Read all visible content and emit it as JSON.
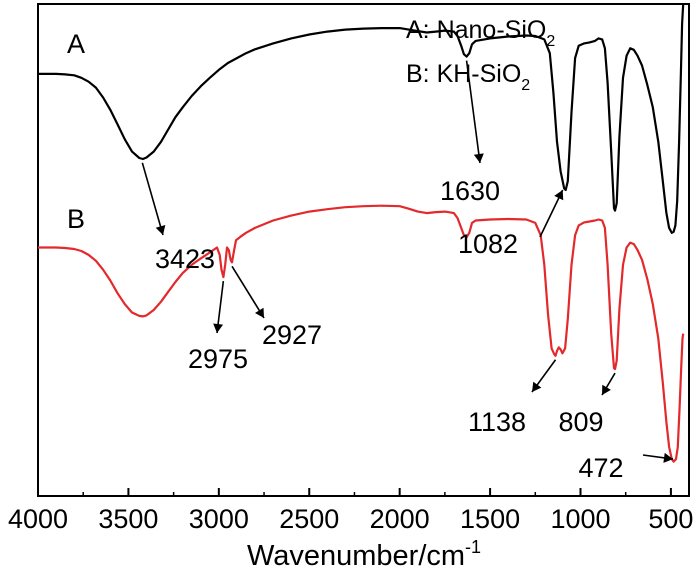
{
  "chart_data": {
    "type": "line",
    "title": "",
    "xlabel": "Wavenumber/cm",
    "xlabel_superscript": "-1",
    "ylabel": "",
    "xlim": [
      4000,
      400
    ],
    "x_reversed": true,
    "ylim": [
      0,
      1
    ],
    "grid": false,
    "x_ticks": [
      4000,
      3500,
      3000,
      2500,
      2000,
      1500,
      1000,
      500
    ],
    "x_tick_labels": [
      "4000",
      "3500",
      "3000",
      "2500",
      "2000",
      "1500",
      "1000",
      "500"
    ],
    "legend": {
      "placement": "top-right",
      "entries": [
        {
          "prefix": "A: Nano-SiO",
          "subscript": "2"
        },
        {
          "prefix": "B: KH-SiO",
          "subscript": "2"
        }
      ]
    },
    "series": [
      {
        "name": "A",
        "color": "#000000",
        "points": [
          [
            4000,
            0.858
          ],
          [
            3900,
            0.858
          ],
          [
            3850,
            0.857
          ],
          [
            3800,
            0.855
          ],
          [
            3760,
            0.85
          ],
          [
            3720,
            0.842
          ],
          [
            3680,
            0.83
          ],
          [
            3640,
            0.81
          ],
          [
            3600,
            0.785
          ],
          [
            3560,
            0.755
          ],
          [
            3520,
            0.725
          ],
          [
            3480,
            0.7
          ],
          [
            3440,
            0.687
          ],
          [
            3420,
            0.685
          ],
          [
            3400,
            0.688
          ],
          [
            3360,
            0.7
          ],
          [
            3320,
            0.72
          ],
          [
            3280,
            0.745
          ],
          [
            3240,
            0.77
          ],
          [
            3200,
            0.79
          ],
          [
            3150,
            0.813
          ],
          [
            3100,
            0.833
          ],
          [
            3050,
            0.85
          ],
          [
            3000,
            0.866
          ],
          [
            2950,
            0.88
          ],
          [
            2900,
            0.89
          ],
          [
            2850,
            0.9
          ],
          [
            2800,
            0.908
          ],
          [
            2700,
            0.92
          ],
          [
            2600,
            0.93
          ],
          [
            2500,
            0.938
          ],
          [
            2400,
            0.944
          ],
          [
            2300,
            0.948
          ],
          [
            2200,
            0.95
          ],
          [
            2100,
            0.951
          ],
          [
            2000,
            0.951
          ],
          [
            1950,
            0.948
          ],
          [
            1900,
            0.945
          ],
          [
            1850,
            0.942
          ],
          [
            1800,
            0.944
          ],
          [
            1750,
            0.946
          ],
          [
            1700,
            0.944
          ],
          [
            1680,
            0.935
          ],
          [
            1660,
            0.915
          ],
          [
            1645,
            0.898
          ],
          [
            1630,
            0.893
          ],
          [
            1615,
            0.9
          ],
          [
            1600,
            0.918
          ],
          [
            1580,
            0.925
          ],
          [
            1500,
            0.93
          ],
          [
            1400,
            0.934
          ],
          [
            1300,
            0.936
          ],
          [
            1250,
            0.935
          ],
          [
            1200,
            0.928
          ],
          [
            1170,
            0.9
          ],
          [
            1150,
            0.82
          ],
          [
            1130,
            0.72
          ],
          [
            1110,
            0.66
          ],
          [
            1090,
            0.625
          ],
          [
            1082,
            0.622
          ],
          [
            1070,
            0.64
          ],
          [
            1050,
            0.78
          ],
          [
            1030,
            0.89
          ],
          [
            1010,
            0.915
          ],
          [
            980,
            0.92
          ],
          [
            950,
            0.922
          ],
          [
            920,
            0.925
          ],
          [
            900,
            0.93
          ],
          [
            880,
            0.928
          ],
          [
            865,
            0.91
          ],
          [
            850,
            0.84
          ],
          [
            830,
            0.7
          ],
          [
            815,
            0.585
          ],
          [
            809,
            0.58
          ],
          [
            800,
            0.595
          ],
          [
            785,
            0.73
          ],
          [
            765,
            0.85
          ],
          [
            745,
            0.895
          ],
          [
            725,
            0.91
          ],
          [
            705,
            0.907
          ],
          [
            685,
            0.895
          ],
          [
            660,
            0.875
          ],
          [
            630,
            0.835
          ],
          [
            600,
            0.79
          ],
          [
            570,
            0.72
          ],
          [
            545,
            0.64
          ],
          [
            525,
            0.575
          ],
          [
            510,
            0.545
          ],
          [
            495,
            0.535
          ],
          [
            485,
            0.537
          ],
          [
            475,
            0.55
          ],
          [
            465,
            0.6
          ],
          [
            455,
            0.72
          ],
          [
            445,
            0.86
          ],
          [
            438,
            0.96
          ],
          [
            432,
            1.0
          ]
        ]
      },
      {
        "name": "B",
        "color": "#e3292b",
        "points": [
          [
            4000,
            0.505
          ],
          [
            3900,
            0.505
          ],
          [
            3850,
            0.504
          ],
          [
            3800,
            0.502
          ],
          [
            3760,
            0.498
          ],
          [
            3720,
            0.49
          ],
          [
            3680,
            0.478
          ],
          [
            3640,
            0.46
          ],
          [
            3600,
            0.438
          ],
          [
            3560,
            0.412
          ],
          [
            3520,
            0.39
          ],
          [
            3480,
            0.373
          ],
          [
            3440,
            0.366
          ],
          [
            3420,
            0.365
          ],
          [
            3400,
            0.367
          ],
          [
            3360,
            0.378
          ],
          [
            3320,
            0.395
          ],
          [
            3280,
            0.415
          ],
          [
            3240,
            0.435
          ],
          [
            3200,
            0.453
          ],
          [
            3150,
            0.47
          ],
          [
            3100,
            0.483
          ],
          [
            3050,
            0.495
          ],
          [
            3010,
            0.505
          ],
          [
            2995,
            0.49
          ],
          [
            2985,
            0.46
          ],
          [
            2975,
            0.445
          ],
          [
            2965,
            0.47
          ],
          [
            2955,
            0.505
          ],
          [
            2945,
            0.5
          ],
          [
            2935,
            0.48
          ],
          [
            2927,
            0.475
          ],
          [
            2918,
            0.495
          ],
          [
            2905,
            0.52
          ],
          [
            2880,
            0.527
          ],
          [
            2850,
            0.535
          ],
          [
            2800,
            0.545
          ],
          [
            2700,
            0.56
          ],
          [
            2600,
            0.57
          ],
          [
            2500,
            0.578
          ],
          [
            2400,
            0.583
          ],
          [
            2300,
            0.587
          ],
          [
            2200,
            0.589
          ],
          [
            2100,
            0.59
          ],
          [
            2000,
            0.589
          ],
          [
            1950,
            0.584
          ],
          [
            1900,
            0.578
          ],
          [
            1850,
            0.575
          ],
          [
            1800,
            0.577
          ],
          [
            1750,
            0.578
          ],
          [
            1700,
            0.575
          ],
          [
            1680,
            0.565
          ],
          [
            1660,
            0.545
          ],
          [
            1645,
            0.53
          ],
          [
            1630,
            0.526
          ],
          [
            1615,
            0.535
          ],
          [
            1600,
            0.555
          ],
          [
            1580,
            0.56
          ],
          [
            1500,
            0.562
          ],
          [
            1400,
            0.563
          ],
          [
            1300,
            0.562
          ],
          [
            1250,
            0.555
          ],
          [
            1220,
            0.53
          ],
          [
            1200,
            0.47
          ],
          [
            1180,
            0.37
          ],
          [
            1160,
            0.3
          ],
          [
            1145,
            0.288
          ],
          [
            1138,
            0.285
          ],
          [
            1130,
            0.295
          ],
          [
            1120,
            0.302
          ],
          [
            1110,
            0.298
          ],
          [
            1100,
            0.29
          ],
          [
            1085,
            0.3
          ],
          [
            1070,
            0.36
          ],
          [
            1050,
            0.47
          ],
          [
            1030,
            0.53
          ],
          [
            1010,
            0.55
          ],
          [
            980,
            0.556
          ],
          [
            950,
            0.558
          ],
          [
            920,
            0.56
          ],
          [
            900,
            0.562
          ],
          [
            880,
            0.56
          ],
          [
            865,
            0.545
          ],
          [
            850,
            0.47
          ],
          [
            830,
            0.33
          ],
          [
            815,
            0.26
          ],
          [
            809,
            0.258
          ],
          [
            800,
            0.275
          ],
          [
            785,
            0.38
          ],
          [
            765,
            0.47
          ],
          [
            745,
            0.505
          ],
          [
            725,
            0.515
          ],
          [
            705,
            0.512
          ],
          [
            685,
            0.5
          ],
          [
            660,
            0.48
          ],
          [
            630,
            0.44
          ],
          [
            600,
            0.39
          ],
          [
            570,
            0.32
          ],
          [
            545,
            0.23
          ],
          [
            525,
            0.15
          ],
          [
            510,
            0.1
          ],
          [
            495,
            0.075
          ],
          [
            485,
            0.07
          ],
          [
            472,
            0.075
          ],
          [
            462,
            0.1
          ],
          [
            452,
            0.18
          ],
          [
            442,
            0.27
          ],
          [
            436,
            0.32
          ],
          [
            432,
            0.33
          ]
        ]
      }
    ],
    "curve_labels": [
      {
        "text": "A",
        "x": 3790,
        "y": 0.9
      },
      {
        "text": "B",
        "x": 3790,
        "y": 0.545
      }
    ],
    "annotations": [
      {
        "label": "3423",
        "series": "A",
        "x": 3423
      },
      {
        "label": "1630",
        "series": "A",
        "x": 1630
      },
      {
        "label": "1082",
        "series": "A",
        "x": 1082
      },
      {
        "label": "2975",
        "series": "B",
        "x": 2975
      },
      {
        "label": "2927",
        "series": "B",
        "x": 2927
      },
      {
        "label": "1138",
        "series": "B",
        "x": 1138
      },
      {
        "label": "809",
        "series": "B",
        "x": 809
      },
      {
        "label": "472",
        "series": "B",
        "x": 472
      }
    ]
  }
}
